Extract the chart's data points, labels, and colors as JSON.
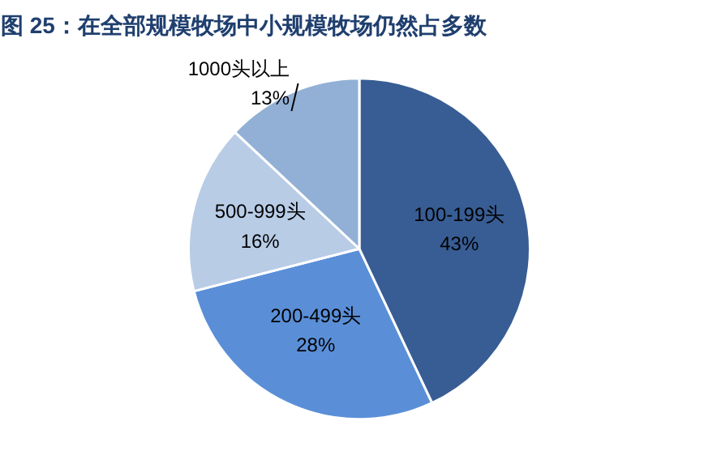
{
  "chart_data": {
    "type": "pie",
    "title": "图 25：在全部规模牧场中小规模牧场仍然占多数",
    "categories": [
      "100-199头",
      "200-499头",
      "500-999头",
      "1000头以上"
    ],
    "values": [
      43,
      28,
      16,
      13
    ],
    "colors": [
      "#385d94",
      "#5a8fd8",
      "#b8cce6",
      "#92b0d6"
    ],
    "value_labels": [
      "43%",
      "28%",
      "16%",
      "13%"
    ]
  }
}
